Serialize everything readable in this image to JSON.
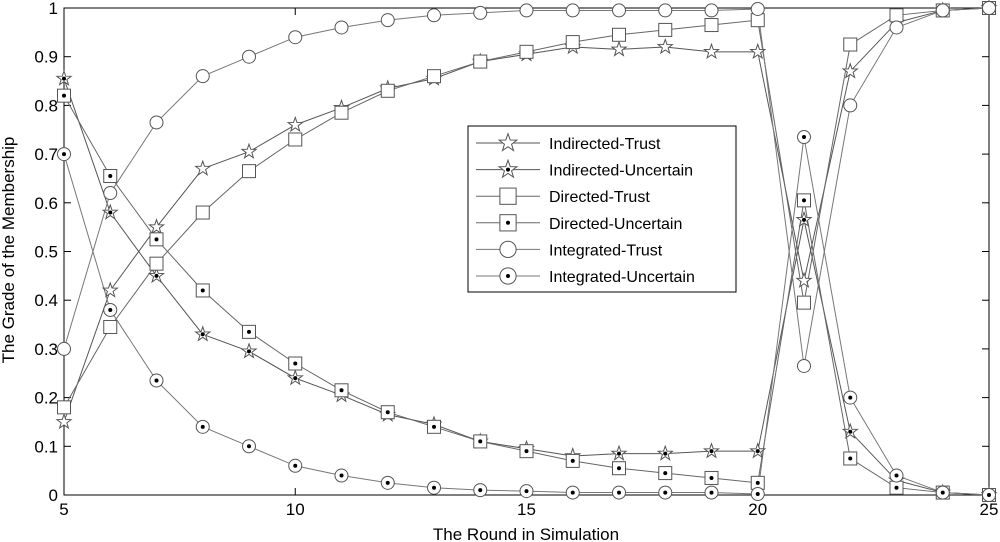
{
  "chart_data": {
    "type": "line",
    "xlabel": "The Round in Simulation",
    "ylabel": "The Grade of the Membership",
    "xlim": [
      5,
      25
    ],
    "ylim": [
      0,
      1
    ],
    "x_ticks": [
      5,
      10,
      15,
      20,
      25
    ],
    "x_tick_labels": [
      "5",
      "10",
      "15",
      "20",
      "25"
    ],
    "y_ticks": [
      0,
      0.1,
      0.2,
      0.3,
      0.4,
      0.5,
      0.6,
      0.7,
      0.8,
      0.9,
      1
    ],
    "y_tick_labels": [
      "0",
      "0.1",
      "0.2",
      "0.3",
      "0.4",
      "0.5",
      "0.6",
      "0.7",
      "0.8",
      "0.9",
      "1"
    ],
    "grid": false,
    "legend_position": "center-right",
    "x": [
      5,
      6,
      7,
      8,
      9,
      10,
      11,
      12,
      13,
      14,
      15,
      16,
      17,
      18,
      19,
      20,
      21,
      22,
      23,
      24,
      25
    ],
    "series": [
      {
        "name": "Indirected-Trust",
        "marker": "star",
        "values": [
          0.15,
          0.42,
          0.55,
          0.67,
          0.705,
          0.76,
          0.795,
          0.835,
          0.855,
          0.89,
          0.905,
          0.92,
          0.915,
          0.92,
          0.91,
          0.91,
          0.44,
          0.87,
          0.97,
          0.995,
          1.0
        ]
      },
      {
        "name": "Indirected-Uncertain",
        "marker": "star-dot",
        "values": [
          0.855,
          0.58,
          0.45,
          0.33,
          0.295,
          0.24,
          0.205,
          0.165,
          0.145,
          0.11,
          0.095,
          0.08,
          0.085,
          0.085,
          0.09,
          0.09,
          0.565,
          0.13,
          0.03,
          0.005,
          0.0
        ]
      },
      {
        "name": "Directed-Trust",
        "marker": "square",
        "values": [
          0.18,
          0.345,
          0.475,
          0.58,
          0.665,
          0.73,
          0.785,
          0.83,
          0.86,
          0.89,
          0.91,
          0.93,
          0.945,
          0.955,
          0.965,
          0.975,
          0.395,
          0.925,
          0.985,
          0.995,
          1.0
        ]
      },
      {
        "name": "Directed-Uncertain",
        "marker": "square-dot",
        "values": [
          0.82,
          0.655,
          0.525,
          0.42,
          0.335,
          0.27,
          0.215,
          0.17,
          0.14,
          0.11,
          0.09,
          0.07,
          0.055,
          0.045,
          0.035,
          0.025,
          0.605,
          0.075,
          0.015,
          0.005,
          0.0
        ]
      },
      {
        "name": "Integrated-Trust",
        "marker": "circle",
        "values": [
          0.3,
          0.62,
          0.765,
          0.86,
          0.9,
          0.94,
          0.96,
          0.975,
          0.985,
          0.99,
          0.995,
          0.995,
          0.995,
          0.995,
          0.995,
          0.998,
          0.265,
          0.8,
          0.96,
          0.995,
          1.0
        ]
      },
      {
        "name": "Integrated-Uncertain",
        "marker": "circle-dot",
        "values": [
          0.7,
          0.38,
          0.235,
          0.14,
          0.1,
          0.06,
          0.04,
          0.025,
          0.015,
          0.01,
          0.008,
          0.005,
          0.005,
          0.005,
          0.005,
          0.002,
          0.735,
          0.2,
          0.04,
          0.005,
          0.0
        ]
      }
    ]
  }
}
